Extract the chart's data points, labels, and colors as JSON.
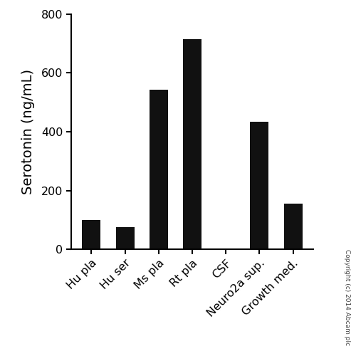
{
  "categories": [
    "Hu pla",
    "Hu ser",
    "Ms pla",
    "Rt pla",
    "CSF",
    "Neuro2a sup.",
    "Growth med."
  ],
  "values": [
    100,
    75,
    543,
    715,
    0,
    435,
    155
  ],
  "bar_color": "#111111",
  "ylabel": "Serotonin (ng/mL)",
  "ylim": [
    0,
    800
  ],
  "yticks": [
    0,
    200,
    400,
    600,
    800
  ],
  "bar_width": 0.55,
  "background_color": "#ffffff",
  "copyright_text": "Copyright (c) 2014 Abcam plc",
  "tick_fontsize": 11.5,
  "ylabel_fontsize": 14,
  "copyright_fontsize": 6.5
}
